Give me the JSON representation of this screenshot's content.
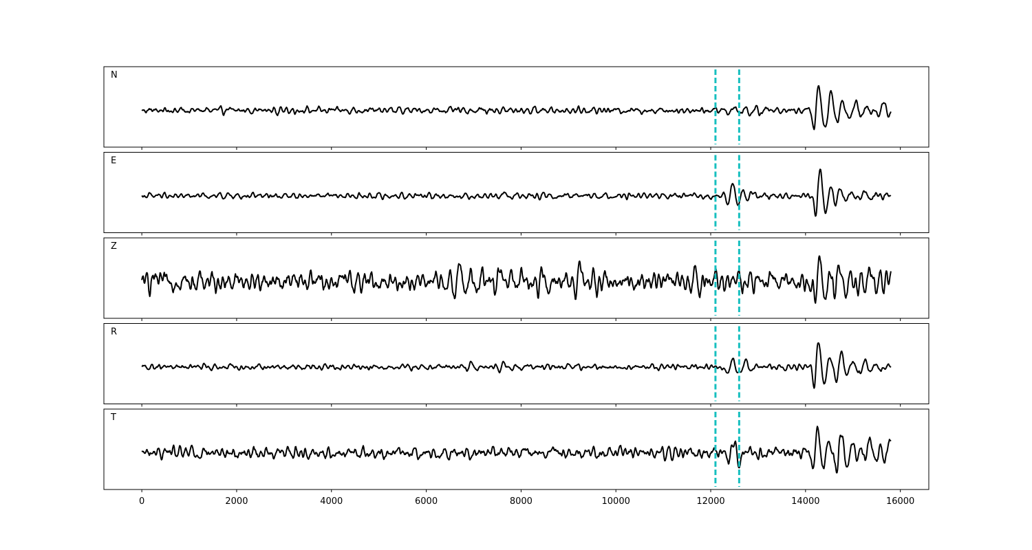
{
  "chart_data": {
    "type": "line",
    "title": "",
    "xlabel": "",
    "ylabel": "",
    "xlim": [
      -800,
      16600
    ],
    "x_ticks": [
      0,
      2000,
      4000,
      6000,
      8000,
      10000,
      12000,
      14000,
      16000
    ],
    "x_tick_labels": [
      "0",
      "2000",
      "4000",
      "6000",
      "8000",
      "10000",
      "12000",
      "14000",
      "16000"
    ],
    "y_ticks_visible": false,
    "grid": false,
    "sample_range": [
      0,
      15800
    ],
    "vertical_markers": {
      "x": [
        12100,
        12600
      ],
      "color": "#17bfbf",
      "style": "dashed"
    },
    "line_color": "#000000",
    "series": [
      {
        "name": "N",
        "noise_level": 0.07,
        "events": [
          {
            "x": 7100,
            "amp": 0.05
          },
          {
            "x": 12430,
            "amp": 0.18
          },
          {
            "x": 12880,
            "amp": 0.1
          },
          {
            "x": 14220,
            "amp": 1.0
          },
          {
            "x": 14500,
            "amp": 0.45
          },
          {
            "x": 15000,
            "amp": 0.28
          },
          {
            "x": 15600,
            "amp": 0.35
          }
        ]
      },
      {
        "name": "E",
        "noise_level": 0.06,
        "events": [
          {
            "x": 7600,
            "amp": 0.15
          },
          {
            "x": 12400,
            "amp": 0.45
          },
          {
            "x": 12800,
            "amp": 0.18
          },
          {
            "x": 14250,
            "amp": 1.0
          },
          {
            "x": 14650,
            "amp": 0.38
          },
          {
            "x": 15200,
            "amp": 0.22
          }
        ]
      },
      {
        "name": "Z",
        "noise_level": 0.22,
        "events": [
          {
            "x": 6650,
            "amp": 0.8
          },
          {
            "x": 7500,
            "amp": 0.45
          },
          {
            "x": 8400,
            "amp": 0.5
          },
          {
            "x": 9200,
            "amp": 0.45
          },
          {
            "x": 11600,
            "amp": 0.4
          },
          {
            "x": 14240,
            "amp": 0.9
          },
          {
            "x": 14650,
            "amp": 0.55
          },
          {
            "x": 15300,
            "amp": 0.45
          }
        ]
      },
      {
        "name": "R",
        "noise_level": 0.06,
        "events": [
          {
            "x": 6900,
            "amp": 0.18
          },
          {
            "x": 7600,
            "amp": 0.15
          },
          {
            "x": 12400,
            "amp": 0.3
          },
          {
            "x": 12700,
            "amp": 0.18
          },
          {
            "x": 14220,
            "amp": 1.0
          },
          {
            "x": 14700,
            "amp": 0.4
          },
          {
            "x": 15200,
            "amp": 0.25
          }
        ]
      },
      {
        "name": "T",
        "noise_level": 0.13,
        "events": [
          {
            "x": 1000,
            "amp": 0.15
          },
          {
            "x": 12430,
            "amp": 0.4
          },
          {
            "x": 12750,
            "amp": 0.22
          },
          {
            "x": 14200,
            "amp": 1.0
          },
          {
            "x": 14700,
            "amp": 0.7
          },
          {
            "x": 15300,
            "amp": 0.55
          },
          {
            "x": 15700,
            "amp": 0.6
          }
        ]
      }
    ]
  }
}
